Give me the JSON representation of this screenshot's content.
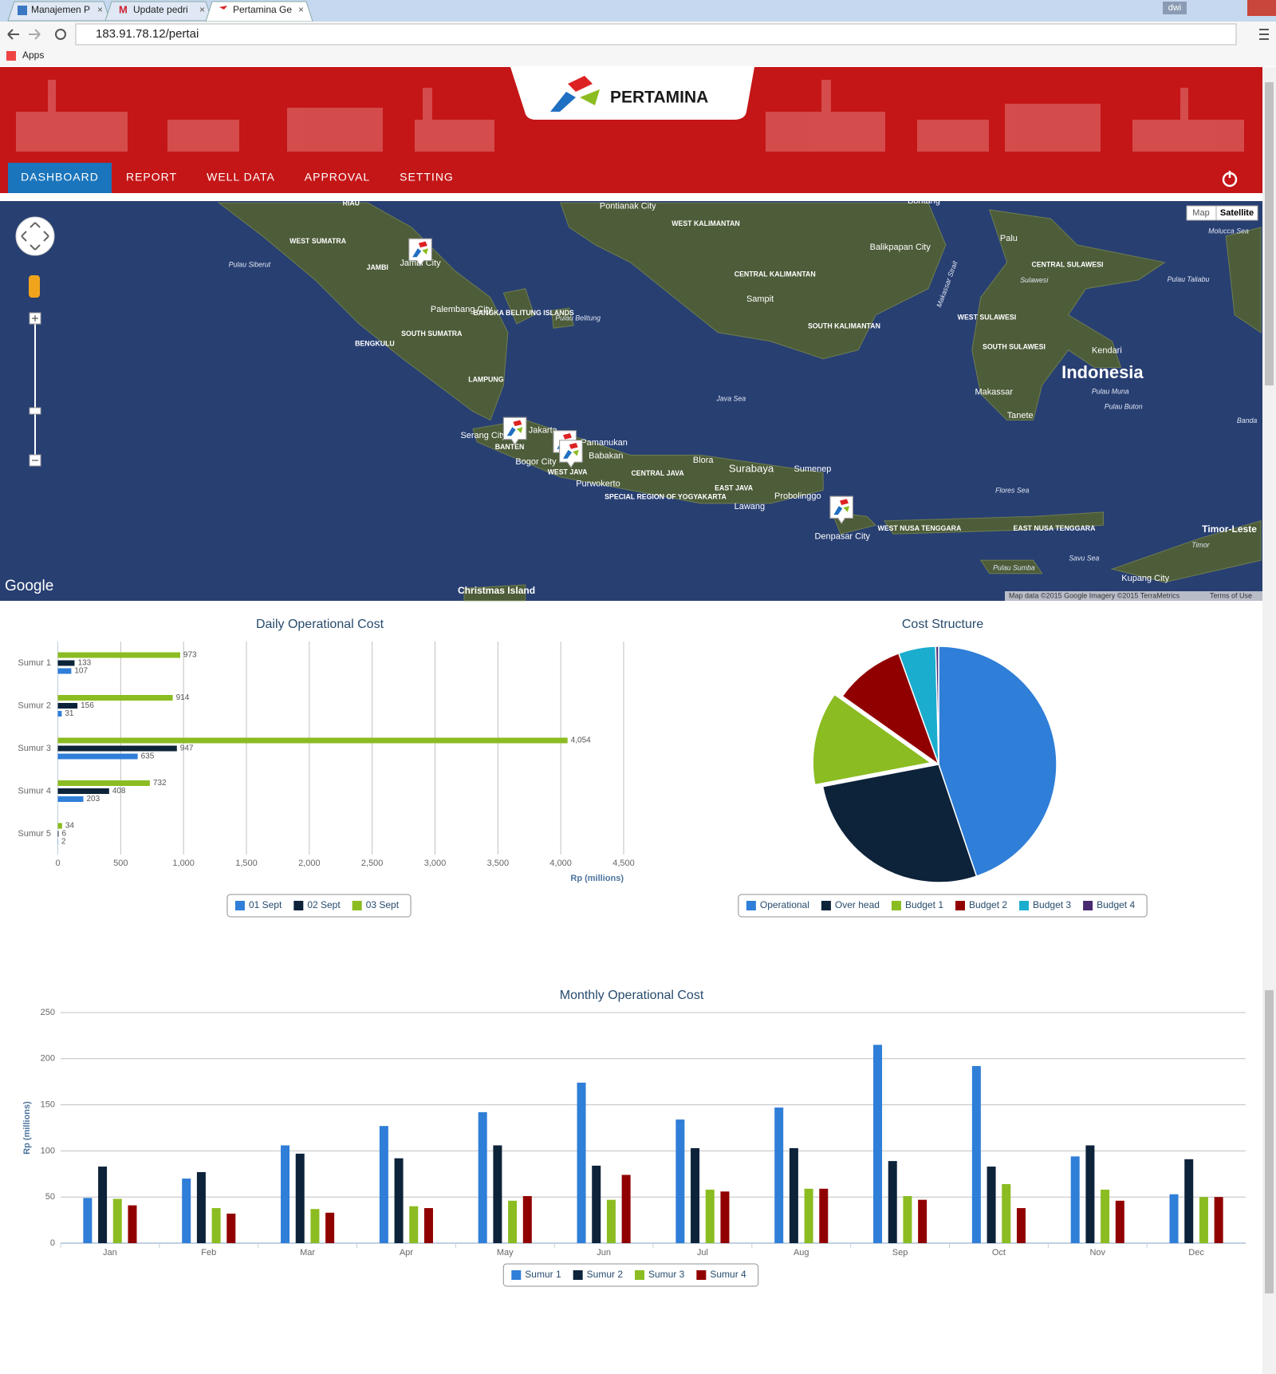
{
  "browser": {
    "tabs": [
      "Manajemen P",
      "Update pedri",
      "Pertamina Ge"
    ],
    "url": "183.91.78.12/pertai",
    "bookmarks": [
      "Apps"
    ],
    "user": "dwi"
  },
  "header": {
    "brand": "PERTAMINA",
    "nav": [
      "DASHBOARD",
      "REPORT",
      "WELL DATA",
      "APPROVAL",
      "SETTING"
    ]
  },
  "map": {
    "buttons": [
      "Map",
      "Satellite"
    ],
    "logo": "Google",
    "attribution": "Map data ©2015 Google Imagery ©2015 TerraMetrics",
    "terms": "Terms of Use",
    "labels": [
      "RIAU",
      "Pontianak City",
      "WEST KALIMANTAN",
      "Bontang",
      "WEST SUMATRA",
      "Balikpapan City",
      "Palu",
      "Molucca Sea",
      "Pulau Siberut",
      "JAMBI",
      "Jambi City",
      "CENTRAL SULAWESI",
      "Sulawesi",
      "Pulau Taliabu",
      "CENTRAL KALIMANTAN",
      "Sampit",
      "Palembang City",
      "BANGKA BELITUNG ISLANDS",
      "Pulau Belitung",
      "WEST SULAWESI",
      "SOUTH KALIMANTAN",
      "SOUTH SUMATRA",
      "BENGKULU",
      "SOUTH SULAWESI",
      "Kendari",
      "Indonesia",
      "LAMPUNG",
      "Makassar",
      "Pulau Muna",
      "Java Sea",
      "Pulau Buton",
      "Tanete",
      "Banda",
      "Serang City",
      "Jakarta",
      "BANTEN",
      "Pamanukan",
      "Babakan",
      "Bogor City",
      "Blora",
      "Surabaya",
      "Sumenep",
      "WEST JAVA",
      "CENTRAL JAVA",
      "Purwokerto",
      "EAST JAVA",
      "Flores Sea",
      "SPECIAL REGION OF YOGYAKARTA",
      "Probolinggo",
      "Lawang",
      "WEST NUSA TENGGARA",
      "EAST NUSA TENGGARA",
      "Timor-Leste",
      "Denpasar City",
      "Timor",
      "Savu Sea",
      "Pulau Sumba",
      "Kupang City",
      "Christmas Island",
      "Makassar Strait"
    ]
  },
  "chart_data": [
    {
      "type": "bar",
      "orientation": "horizontal",
      "title": "Daily Operational Cost",
      "x_label": "Rp (millions)",
      "categories": [
        "Sumur 1",
        "Sumur 2",
        "Sumur 3",
        "Sumur 4",
        "Sumur 5"
      ],
      "series": [
        {
          "name": "01 Sept",
          "color": "#2f7ed8",
          "values": [
            107,
            31,
            635,
            203,
            2
          ]
        },
        {
          "name": "02 Sept",
          "color": "#0d233a",
          "values": [
            133,
            156,
            947,
            408,
            6
          ]
        },
        {
          "name": "03 Sept",
          "color": "#8bbc21",
          "values": [
            973,
            914,
            4054,
            732,
            34
          ],
          "value_labels": [
            "973",
            "914",
            "4,054",
            "732",
            "34"
          ]
        }
      ],
      "xlim": [
        0,
        4500
      ],
      "xticks": [
        0,
        500,
        {
          "value": 1000,
          "label": "1,000"
        },
        {
          "value": 1500,
          "label": "1,500"
        },
        {
          "value": 2000,
          "label": "2,000"
        },
        {
          "value": 2500,
          "label": "2,500"
        },
        {
          "value": 3000,
          "label": "3,000"
        },
        {
          "value": 3500,
          "label": "3,500"
        },
        {
          "value": 4000,
          "label": "4,000"
        },
        {
          "value": 4500,
          "label": "4,500"
        }
      ],
      "grid": true
    },
    {
      "type": "pie",
      "title": "Cost Structure",
      "categories": [
        "Operational",
        "Over head",
        "Budget 1",
        "Budget 2",
        "Budget 3",
        "Budget 4"
      ],
      "values": [
        44.8,
        27.2,
        12.8,
        9.7,
        5.1,
        0.4
      ],
      "colors": [
        "#2f7ed8",
        "#0d233a",
        "#8bbc21",
        "#910000",
        "#1aadce",
        "#492970"
      ],
      "sliced_index": 2
    },
    {
      "type": "column",
      "title": "Monthly Operational Cost",
      "y_label": "Rp (millions)",
      "categories": [
        "Jan",
        "Feb",
        "Mar",
        "Apr",
        "May",
        "Jun",
        "Jul",
        "Aug",
        "Sep",
        "Oct",
        "Nov",
        "Dec"
      ],
      "series": [
        {
          "name": "Sumur 1",
          "color": "#2f7ed8",
          "values": [
            49,
            70,
            106,
            127,
            142,
            174,
            134,
            147,
            215,
            192,
            94,
            53
          ]
        },
        {
          "name": "Sumur 2",
          "color": "#0d233a",
          "values": [
            83,
            77,
            97,
            92,
            106,
            84,
            103,
            103,
            89,
            83,
            106,
            91
          ]
        },
        {
          "name": "Sumur 3",
          "color": "#8bbc21",
          "values": [
            48,
            38,
            37,
            40,
            46,
            47,
            58,
            59,
            51,
            64,
            58,
            50
          ]
        },
        {
          "name": "Sumur 4",
          "color": "#910000",
          "values": [
            41,
            32,
            33,
            38,
            51,
            74,
            56,
            59,
            47,
            38,
            46,
            50
          ]
        }
      ],
      "ylim": [
        0,
        250
      ],
      "yticks": [
        0,
        50,
        100,
        150,
        200,
        250
      ],
      "grid": true
    }
  ]
}
